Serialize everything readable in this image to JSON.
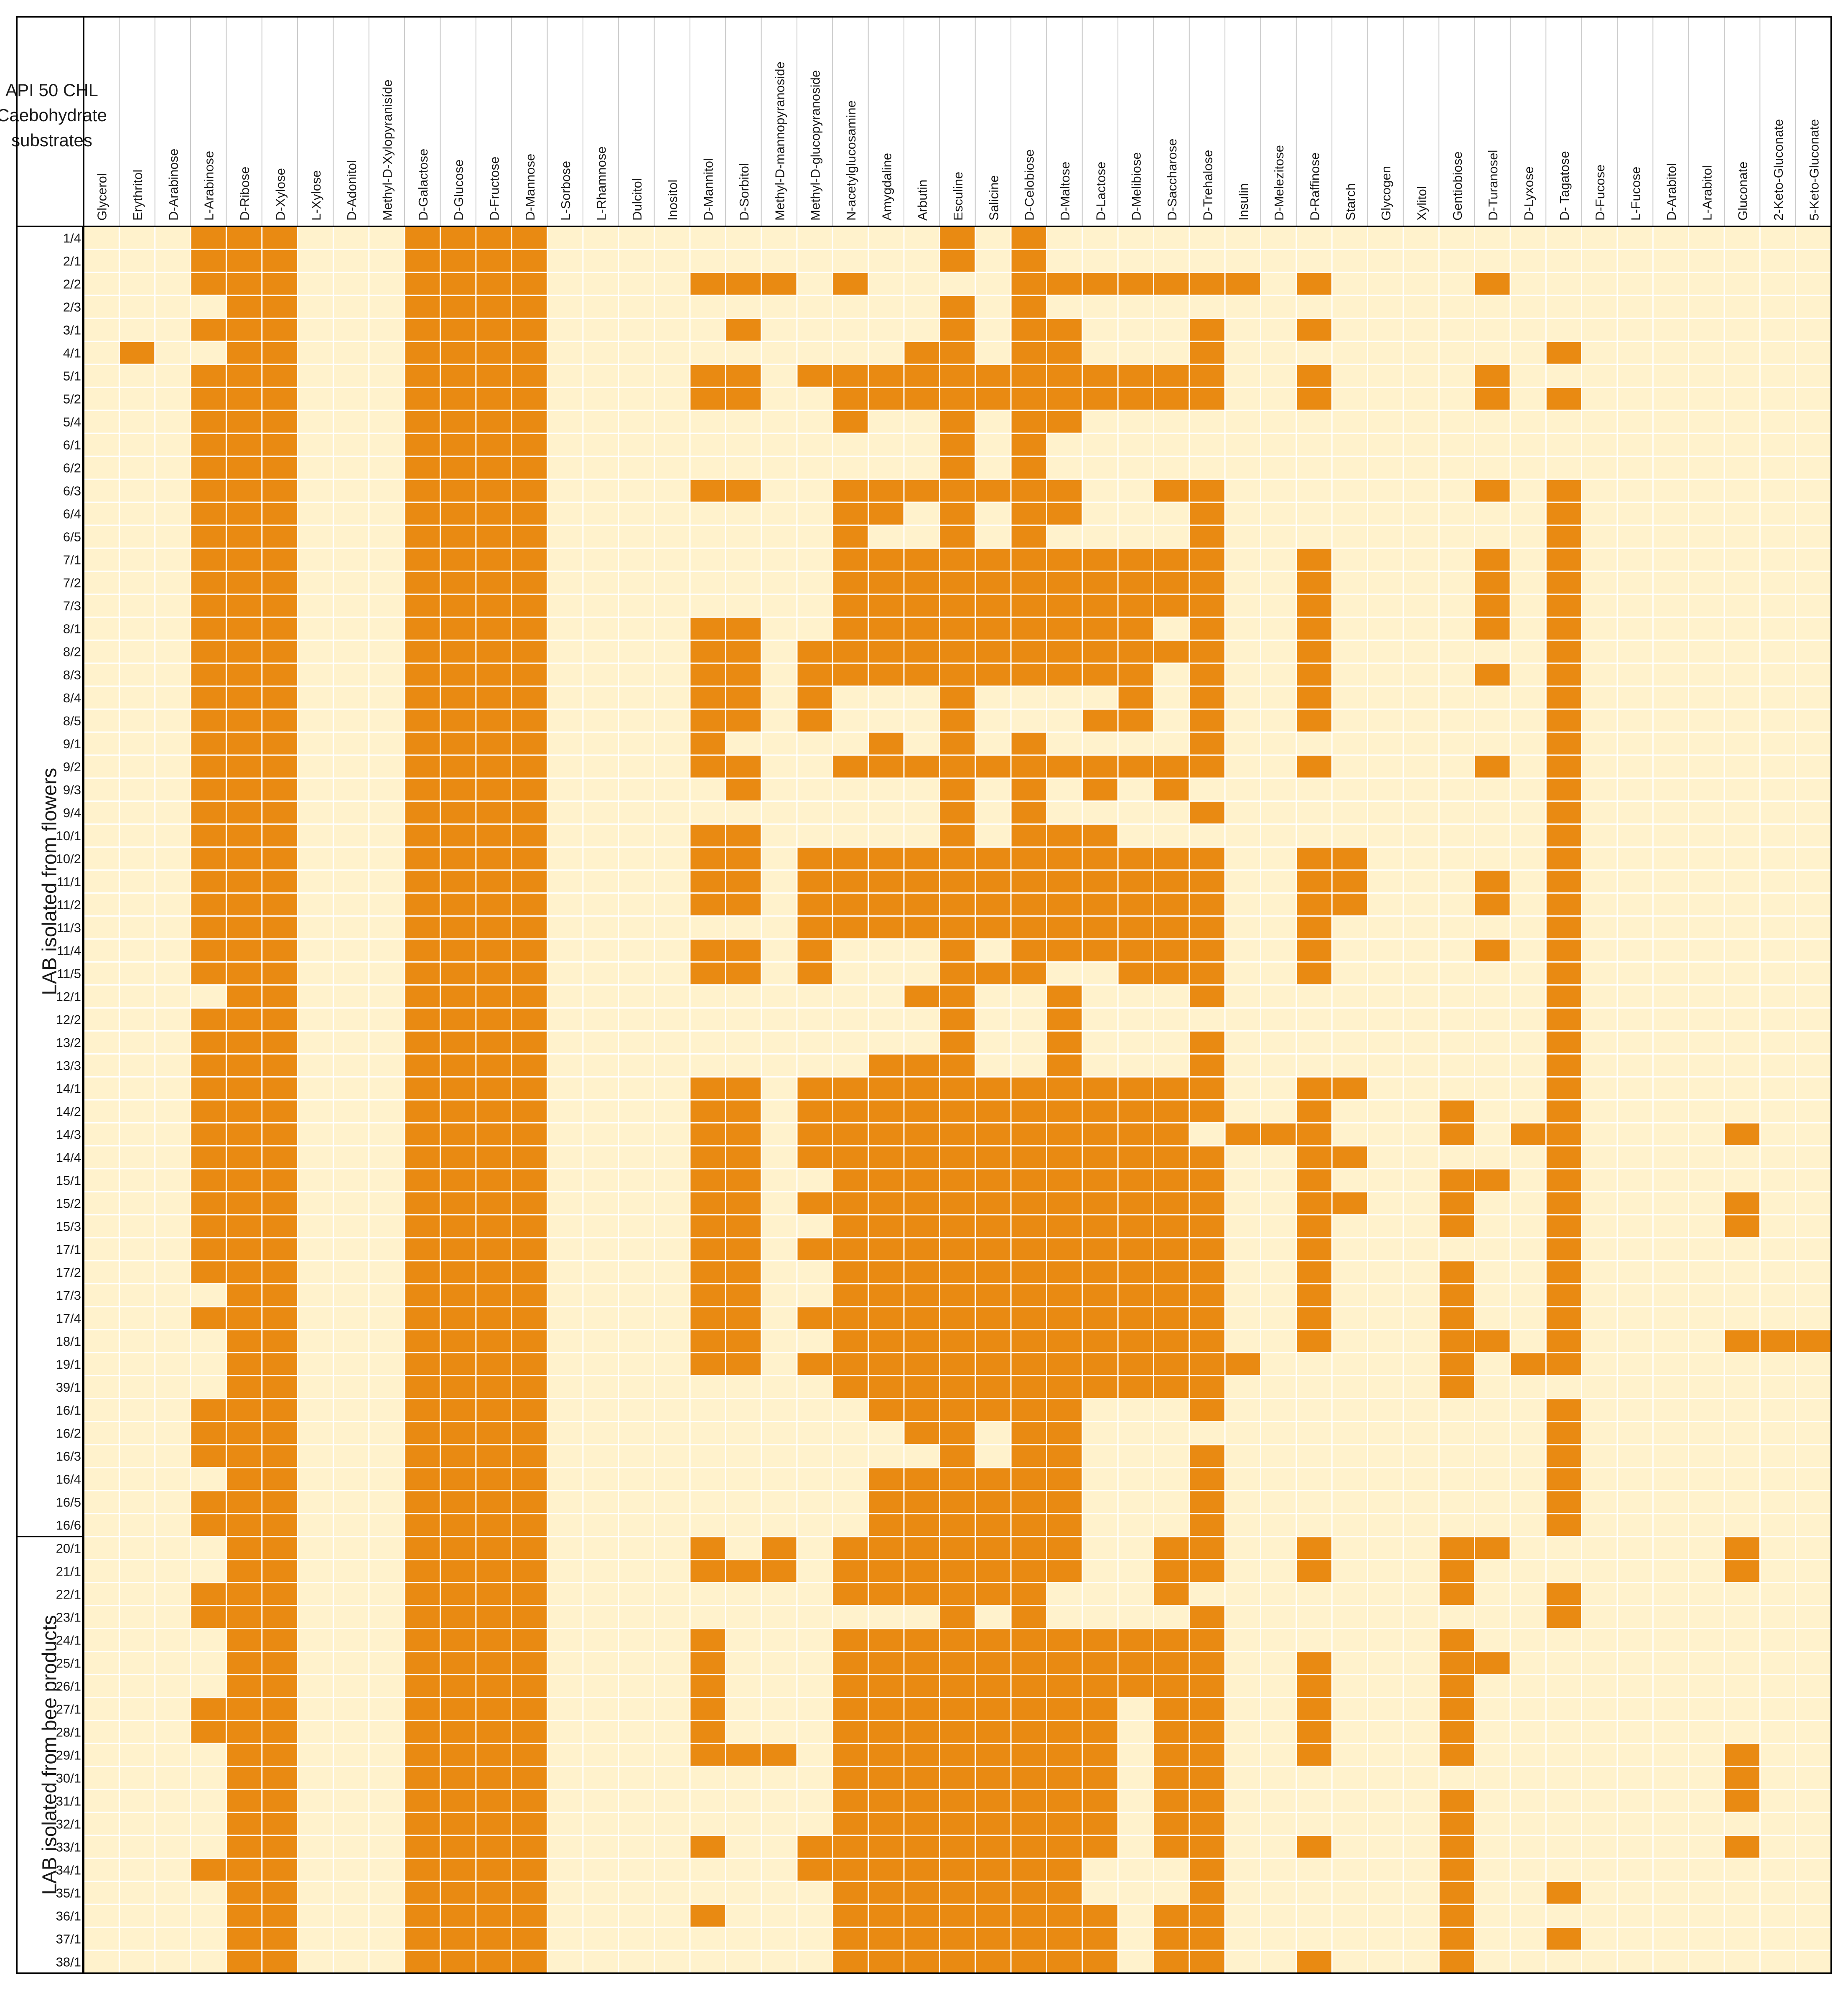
{
  "colors": {
    "positive": "#e98a12",
    "negative": "#fff2cc",
    "grid": "#ffffff",
    "border": "#000000",
    "text": "#1a1a1a"
  },
  "chart_data": {
    "type": "heatmap",
    "title": "API 50 CHL Caebohydrate substrates",
    "title_lines": [
      "API 50 CHL",
      "Caebohydrate",
      "substrates"
    ],
    "columns": [
      "Glycerol",
      "Erythritol",
      "D-Arabinose",
      "L-Arabinose",
      "D-Ribose",
      "D-Xylose",
      "L-Xylose",
      "D-Adonitol",
      "Methyl-D-Xylopyranisíde",
      "D-Galactose",
      "D-Glucose",
      "D-Fructose",
      "D-Mannose",
      "L-Sorbose",
      "L-Rhamnose",
      "Dulcitol",
      "Inositol",
      "D-Mannitol",
      "D-Sorbitol",
      "Methyl-D-mannopyranoside",
      "Methyl-D-glucopyranoside",
      "N-acetylglucosamine",
      "Amygdaline",
      "Arbutin",
      "Esculine",
      "Salicine",
      "D-Celobiose",
      "D-Maltose",
      "D-Lactose",
      "D-Melibiose",
      "D-Saccharose",
      "D-Trehalose",
      "Insulin",
      "D-Melezitose",
      "D-Raffinose",
      "Starch",
      "Glycogen",
      "Xylitol",
      "Gentiobiose",
      "D-Turanosel",
      "D-Lyxose",
      "D- Tagatose",
      "D-Fucose",
      "L-Fucose",
      "D-Arabitol",
      "L-Arabitol",
      "Gluconate",
      "2-Keto-Gluconate",
      "5-Keto-Gluconate"
    ],
    "groups": [
      {
        "label": "LAB isolated from flowers",
        "rows": [
          "1/4",
          "2/1",
          "2/2",
          "2/3",
          "3/1",
          "4/1",
          "5/1",
          "5/2",
          "5/4",
          "6/1",
          "6/2",
          "6/3",
          "6/4",
          "6/5",
          "7/1",
          "7/2",
          "7/3",
          "8/1",
          "8/2",
          "8/3",
          "8/4",
          "8/5",
          "9/1",
          "9/2",
          "9/3",
          "9/4",
          "10/1",
          "10/2",
          "11/1",
          "11/2",
          "11/3",
          "11/4",
          "11/5",
          "12/1",
          "12/2",
          "13/2",
          "13/3",
          "14/1",
          "14/2",
          "14/3",
          "14/4",
          "15/1",
          "15/2",
          "15/3",
          "17/1",
          "17/2",
          "17/3",
          "17/4",
          "18/1",
          "19/1",
          "39/1",
          "16/1",
          "16/2",
          "16/3",
          "16/4",
          "16/5",
          "16/6"
        ]
      },
      {
        "label": "LAB isolated from bee products",
        "rows": [
          "20/1",
          "21/1",
          "22/1",
          "23/1",
          "24/1",
          "25/1",
          "26/1",
          "27/1",
          "28/1",
          "29/1",
          "30/1",
          "31/1",
          "32/1",
          "33/1",
          "34/1",
          "35/1",
          "36/1",
          "37/1",
          "38/1"
        ]
      }
    ],
    "values": [
      "0001110001111000000000001010000000000000000000000",
      "0001110001111000000000001010000000000000000000000",
      "0001110001111000011101000011111110100001000000000",
      "0000110001111000000000001010000000000000000000000",
      "0001110001111000001000001011000100100000000000000",
      "0100110001111000000000011011000100000000010000000",
      "0001110001111000011011111111111100100001000000000",
      "0001110001111000011001111111111100100001010000000",
      "0001110001111000000001001011000000000000000000000",
      "0001110001111000000000001010000000000000000000000",
      "0001110001111000000000001010000000000000000000000",
      "0001110001111000011001111111001100000001010000000",
      "0001110001111000000001101011000100000000010000000",
      "0001110001111000000001001010000100000000010000000",
      "0001110001111000000001111111111100100001010000000",
      "0001110001111000000001111111111100100001010000000",
      "0001110001111000000001111111111100100001010000000",
      "0001110001111000011001111111110100100001010000000",
      "0001110001111000011011111111111100100000010000000",
      "0001110001111000011011111111110100100001010000000",
      "0001110001111000011010001000010100100000010000000",
      "0001110001111000011010001000110100100000010000000",
      "0001110001111000010000101010000100000000010000000",
      "0001110001111000011001111111111100100001010000000",
      "0001110001111000001000001010101000000000010000000",
      "0001110001111000000000001010000100000000010000000",
      "0001110001111000011000001011100000000000010000000",
      "0001110001111000011011111111111100110000010000000",
      "0001110001111000011011111111111100110001010000000",
      "0001110001111000011011111111111100110001010000000",
      "0001110001111000000011111111111100100000010000000",
      "0001110001111000011010001011111100100001010000000",
      "0001110001111000011010001110011100100000010000000",
      "0000110001111000000000011001000100000000010000000",
      "0001110001111000000000001001000000000000010000000",
      "0001110001111000000000001001000100000000010000000",
      "0001110001111000000000111001000100000000010000000",
      "0001110001111000011011111111111100110000010000000",
      "0001110001111000011011111111111100100010010000000",
      "0001110001111000011011111111111011100010110000100",
      "0001110001111000011011111111111100110000010000000",
      "0001110001111000011001111111111100100011010000000",
      "0001110001111000011011111111111100110010010000100",
      "0001110001111000011001111111111100100010010000100",
      "0001110001111000011011111111111100100000010000000",
      "0001110001111000011001111111111100100010010000000",
      "0000110001111000011001111111111100100010010000000",
      "0001110001111000011011111111111100100010010000000",
      "0000110001111000011001111111111100100011010000111",
      "0000110001111000011011111111111110000010110000000",
      "0000110001111000000001111111111100000010000000000",
      "0001110001111000000000111111000100000000010000000",
      "0001110001111000000000011011000000000000010000000",
      "0001110001111000000000001011000100000000010000000",
      "0000110001111000000000111111000100000000010000000",
      "0001110001111000000000111111000100000000010000000",
      "0001110001111000000000111111000100000000010000000",
      "0000110001111000010101111111001100100011000000100",
      "0000110001111000011101111111001100100010000000100",
      "0001110001111000000001111110001000000010010000000",
      "0001110001111000000000001010000100000000010000000",
      "0000110001111000010001111111111100000010000000000",
      "0000110001111000010001111111111100100011000000000",
      "0000110001111000010001111111111100100010000000000",
      "0001110001111000010001111111101100100010000000000",
      "0001110001111000010001111111101100100010000000000",
      "0000110001111000011101111111101100100010000000100",
      "0000110001111000000001111111101100000000000000100",
      "0000110001111000000001111111101100000010000000100",
      "0000110001111000000001111111101100000010000000000",
      "0000110001111000010011111111101100100010000000100",
      "0001110001111000000011111111000100000010000000000",
      "0000110001111000000001111111000100000010010000000",
      "0000110001111000010001111111101100000010000000000",
      "0000110001111000000001111111101100000010010000000",
      "0000110001111000000001111111101100100010000000000"
    ]
  }
}
